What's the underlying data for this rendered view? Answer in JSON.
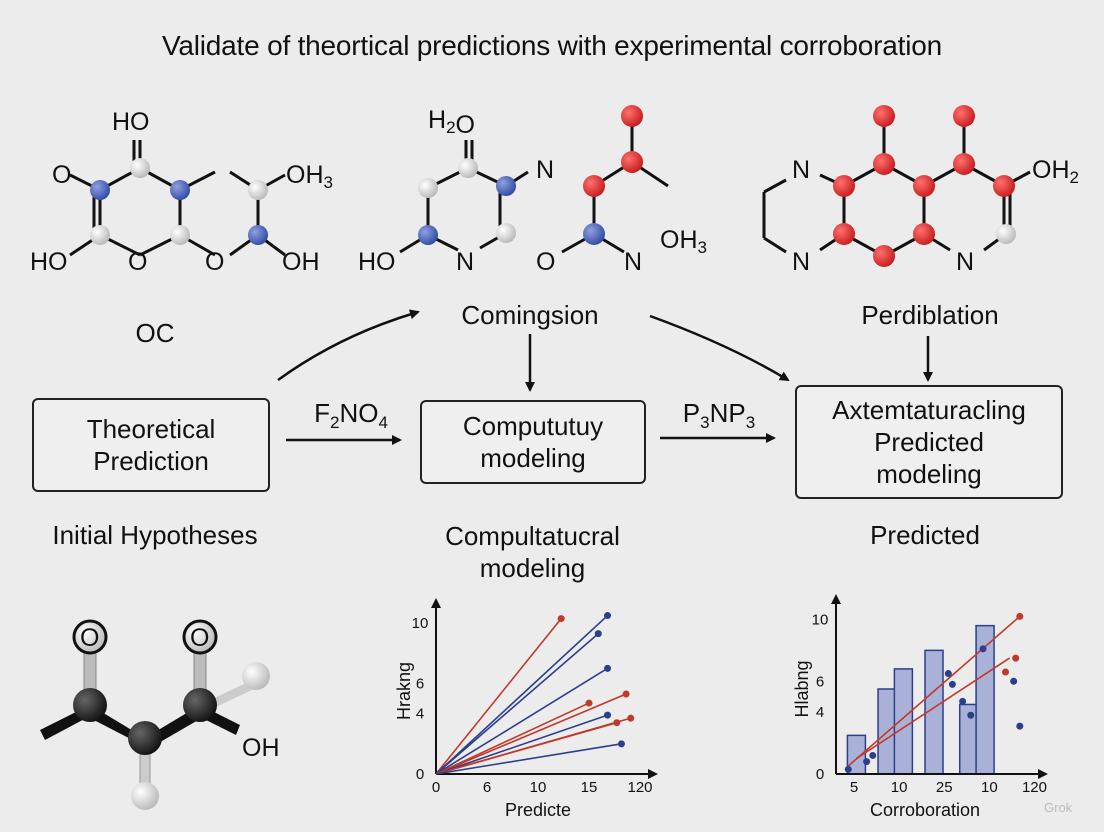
{
  "title": "Validate of theortical predictions with experimental corroboration",
  "molecules": {
    "left": {
      "labels": [
        "HO",
        "O",
        "OH3",
        "HO",
        "O",
        "O",
        "OH"
      ]
    },
    "middle_a": {
      "labels": [
        "H2O",
        "N",
        "HO",
        "N"
      ]
    },
    "middle_b": {
      "labels": [
        "O",
        "N",
        "OH3"
      ]
    },
    "right": {
      "labels": [
        "N",
        "OH2",
        "N",
        "N"
      ]
    },
    "bottom_left": {
      "labels": [
        "O",
        "O",
        "OH"
      ]
    }
  },
  "stage_labels": {
    "oc": "OC",
    "comingsion": "Comingsion",
    "perdiblation": "Perdiblation"
  },
  "edge_labels": {
    "f2no4": "F2NO4",
    "p3np3": "P3NP3"
  },
  "boxes": {
    "theoretical": [
      "Theoretical",
      "Prediction"
    ],
    "computational": [
      "Compututuy",
      "modeling"
    ],
    "experimental": [
      "Axtemtaturacling",
      "Predicted",
      "modeling"
    ]
  },
  "section_labels": {
    "initial": "Initial Hypotheses",
    "computational": [
      "Compultatucral",
      "modeling"
    ],
    "predicted": "Predicted"
  },
  "chart_data": [
    {
      "type": "line",
      "ylabel": "Hrakng",
      "xlabel": "Predicte",
      "x_ticks": [
        "0",
        "6",
        "10",
        "15",
        "120"
      ],
      "y_ticks": [
        "0",
        "4",
        "6",
        "10"
      ],
      "series": [
        {
          "color": "#c0392b",
          "x": [
            0,
            13.5
          ],
          "y": [
            0,
            10.3
          ]
        },
        {
          "color": "#2c3e8c",
          "x": [
            0,
            18.5
          ],
          "y": [
            0,
            10.5
          ]
        },
        {
          "color": "#2c3e8c",
          "x": [
            0,
            17.5
          ],
          "y": [
            0,
            9.3
          ]
        },
        {
          "color": "#2c3e8c",
          "x": [
            0,
            18.5
          ],
          "y": [
            0,
            7.0
          ]
        },
        {
          "color": "#c0392b",
          "x": [
            0,
            20.5
          ],
          "y": [
            0,
            5.3
          ]
        },
        {
          "color": "#c0392b",
          "x": [
            0,
            16.5
          ],
          "y": [
            0,
            4.7
          ]
        },
        {
          "color": "#2c3e8c",
          "x": [
            0,
            18.5
          ],
          "y": [
            0,
            3.9
          ]
        },
        {
          "color": "#c0392b",
          "x": [
            0,
            21.0
          ],
          "y": [
            0,
            3.7
          ]
        },
        {
          "color": "#c0392b",
          "x": [
            0,
            19.5
          ],
          "y": [
            0,
            3.4
          ]
        },
        {
          "color": "#2c3e8c",
          "x": [
            0,
            20.0
          ],
          "y": [
            0,
            2.0
          ]
        }
      ],
      "xlim": [
        0,
        22
      ],
      "ylim": [
        0,
        11
      ]
    },
    {
      "type": "bar",
      "ylabel": "Hlabng",
      "xlabel": "Corroboration",
      "x_ticks": [
        "5",
        "10",
        "25",
        "10",
        "120"
      ],
      "y_ticks": [
        "0",
        "4",
        "6",
        "10"
      ],
      "bars": [
        {
          "x": 1.0,
          "value": 2.5
        },
        {
          "x": 2.5,
          "value": 5.5
        },
        {
          "x": 3.3,
          "value": 6.8
        },
        {
          "x": 4.8,
          "value": 8.0
        },
        {
          "x": 6.5,
          "value": 4.5
        },
        {
          "x": 7.3,
          "value": 9.6
        }
      ],
      "trend_lines": [
        {
          "color": "#c0392b",
          "x": [
            0.5,
            9.0
          ],
          "y": [
            0.4,
            10.2
          ]
        },
        {
          "color": "#c0392b",
          "x": [
            1.0,
            8.5
          ],
          "y": [
            1.0,
            7.5
          ]
        }
      ],
      "points": [
        {
          "x": 0.6,
          "y": 0.3,
          "c": "#2c3e8c"
        },
        {
          "x": 1.5,
          "y": 0.8,
          "c": "#2c3e8c"
        },
        {
          "x": 1.8,
          "y": 1.2,
          "c": "#2c3e8c"
        },
        {
          "x": 5.5,
          "y": 6.5,
          "c": "#2c3e8c"
        },
        {
          "x": 5.7,
          "y": 5.8,
          "c": "#2c3e8c"
        },
        {
          "x": 6.6,
          "y": 3.8,
          "c": "#2c3e8c"
        },
        {
          "x": 6.2,
          "y": 4.7,
          "c": "#2c3e8c"
        },
        {
          "x": 7.2,
          "y": 8.1,
          "c": "#2c3e8c"
        },
        {
          "x": 9.0,
          "y": 3.1,
          "c": "#2c3e8c"
        },
        {
          "x": 8.7,
          "y": 6.0,
          "c": "#2c3e8c"
        },
        {
          "x": 9.0,
          "y": 10.2,
          "c": "#c0392b"
        },
        {
          "x": 8.8,
          "y": 7.5,
          "c": "#c0392b"
        },
        {
          "x": 8.3,
          "y": 6.6,
          "c": "#c0392b"
        }
      ],
      "xlim": [
        0,
        9.5
      ],
      "ylim": [
        0,
        11
      ]
    }
  ],
  "watermark": "Grok"
}
